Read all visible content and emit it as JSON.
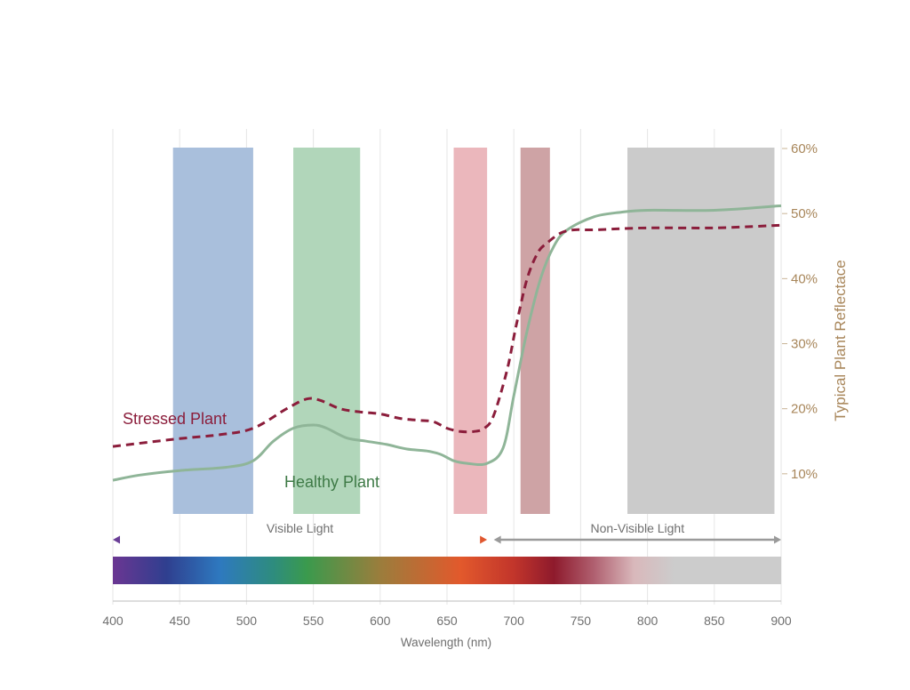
{
  "chart_data": {
    "type": "line",
    "xlabel": "Wavelength (nm)",
    "ylabel": "Typical Plant Reflectace",
    "xlim": [
      400,
      900
    ],
    "ylim": [
      0,
      60
    ],
    "x_ticks": [
      400,
      450,
      500,
      550,
      600,
      650,
      700,
      750,
      800,
      850,
      900
    ],
    "y_ticks": [
      10,
      20,
      30,
      40,
      50,
      60
    ],
    "y_tick_labels": [
      "10%",
      "20%",
      "30%",
      "40%",
      "50%",
      "60%"
    ],
    "grid": "vertical",
    "series": [
      {
        "name": "Stressed Plant",
        "color": "#8b1d3b",
        "style": "dashed",
        "x": [
          400,
          450,
          480,
          505,
          530,
          545,
          555,
          570,
          585,
          600,
          615,
          630,
          640,
          650,
          660,
          670,
          678,
          685,
          695,
          702,
          710,
          718,
          725,
          735,
          745,
          760,
          800,
          850,
          900
        ],
        "y": [
          14.2,
          15.4,
          16.0,
          17.0,
          20.0,
          21.5,
          21.3,
          20.0,
          19.5,
          19.2,
          18.5,
          18.2,
          18.0,
          17.0,
          16.5,
          16.5,
          17.0,
          19.0,
          26.0,
          33.0,
          40.0,
          44.0,
          45.5,
          47.0,
          47.5,
          47.5,
          47.8,
          47.8,
          48.2
        ]
      },
      {
        "name": "Healthy Plant",
        "color": "#8fb598",
        "style": "solid",
        "x": [
          400,
          420,
          450,
          485,
          505,
          520,
          535,
          550,
          560,
          575,
          590,
          605,
          620,
          635,
          645,
          655,
          665,
          680,
          692,
          700,
          710,
          720,
          730,
          740,
          760,
          780,
          800,
          850,
          900
        ],
        "y": [
          9.0,
          9.8,
          10.5,
          11.0,
          12.0,
          15.0,
          17.0,
          17.5,
          17.0,
          15.5,
          15.0,
          14.5,
          13.8,
          13.5,
          13.0,
          12.0,
          11.6,
          11.6,
          14.0,
          22.0,
          32.0,
          40.0,
          45.0,
          47.5,
          49.5,
          50.2,
          50.5,
          50.5,
          51.2
        ]
      }
    ],
    "bands": [
      {
        "x0": 445,
        "x1": 505,
        "color": "#a9bfdc"
      },
      {
        "x0": 535,
        "x1": 585,
        "color": "#b1d6ba"
      },
      {
        "x0": 655,
        "x1": 680,
        "color": "#ebb7bc"
      },
      {
        "x0": 705,
        "x1": 727,
        "color": "#cea3a5"
      },
      {
        "x0": 785,
        "x1": 895,
        "color": "#cbcbcb"
      }
    ],
    "ranges": [
      {
        "label": "Visible Light",
        "from": 400,
        "to": 680,
        "gradient": [
          "#6a3e97",
          "#4a4fa8",
          "#3b82c4",
          "#3d9a5c",
          "#b67d45",
          "#e0572f"
        ]
      },
      {
        "label": "Non-Visible Light",
        "from": 685,
        "to": 900,
        "color": "#9a9a9a"
      }
    ],
    "spectrum_stops": [
      {
        "x": 400,
        "color": "#6a3692"
      },
      {
        "x": 440,
        "color": "#2f3f8f"
      },
      {
        "x": 480,
        "color": "#2e79bf"
      },
      {
        "x": 520,
        "color": "#2e8c7e"
      },
      {
        "x": 545,
        "color": "#3a9a4d"
      },
      {
        "x": 600,
        "color": "#9b7d3c"
      },
      {
        "x": 660,
        "color": "#e2592c"
      },
      {
        "x": 700,
        "color": "#c2352b"
      },
      {
        "x": 730,
        "color": "#8e1a2c"
      },
      {
        "x": 760,
        "color": "#b06070"
      },
      {
        "x": 790,
        "color": "#d9b8bb"
      },
      {
        "x": 820,
        "color": "#cccccc"
      },
      {
        "x": 900,
        "color": "#cccccc"
      }
    ]
  }
}
